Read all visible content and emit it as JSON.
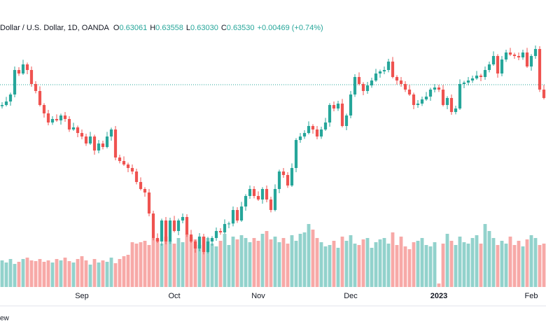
{
  "chart_data": {
    "type": "candlestick",
    "title": "Dollar / U.S. Dollar, 1D, OANDA",
    "legend": [
      {
        "label": "O",
        "value": "0.63061"
      },
      {
        "label": "H",
        "value": "0.63558"
      },
      {
        "label": "L",
        "value": "0.63030"
      },
      {
        "label": "C",
        "value": "0.63530"
      }
    ],
    "change": "+0.00469 (+0.74%)",
    "watermark": "ew",
    "up_color": "#26a69a",
    "down_color": "#ef5350",
    "xlim": [
      -0.5,
      129.5
    ],
    "ylim": [
      0.613,
      0.727
    ],
    "vlim": [
      0,
      100
    ],
    "price_line": 0.6997,
    "xticks": [
      {
        "value": 19,
        "label": "Sep"
      },
      {
        "value": 41,
        "label": "Oct"
      },
      {
        "value": 61,
        "label": "Nov"
      },
      {
        "value": 83,
        "label": "Dec"
      },
      {
        "value": 104,
        "label": "2023",
        "bold": true
      },
      {
        "value": 126,
        "label": "Feb"
      }
    ],
    "open": [
      0.6905,
      0.691,
      0.6925,
      0.6955,
      0.706,
      0.7045,
      0.7084,
      0.706,
      0.7,
      0.697,
      0.691,
      0.6874,
      0.6835,
      0.685,
      0.6844,
      0.6865,
      0.685,
      0.6805,
      0.6814,
      0.679,
      0.6775,
      0.6745,
      0.6775,
      0.6715,
      0.6745,
      0.673,
      0.6775,
      0.6805,
      0.6685,
      0.667,
      0.6655,
      0.664,
      0.6625,
      0.658,
      0.655,
      0.6535,
      0.6445,
      0.634,
      0.6325,
      0.6415,
      0.6325,
      0.6415,
      0.637,
      0.6415,
      0.643,
      0.6355,
      0.6325,
      0.6295,
      0.6346,
      0.628,
      0.6325,
      0.634,
      0.637,
      0.6364,
      0.64,
      0.6402,
      0.646,
      0.6415,
      0.6475,
      0.652,
      0.655,
      0.652,
      0.6505,
      0.655,
      0.6505,
      0.646,
      0.655,
      0.6625,
      0.661,
      0.6565,
      0.664,
      0.676,
      0.6775,
      0.679,
      0.682,
      0.6805,
      0.6775,
      0.6805,
      0.6835,
      0.691,
      0.6895,
      0.6916,
      0.682,
      0.6865,
      0.6955,
      0.703,
      0.7,
      0.697,
      0.6994,
      0.7015,
      0.7045,
      0.7054,
      0.706,
      0.7096,
      0.703,
      0.7015,
      0.7,
      0.6976,
      0.6955,
      0.691,
      0.6916,
      0.6934,
      0.6946,
      0.6976,
      0.6985,
      0.6976,
      0.691,
      0.694,
      0.688,
      0.6895,
      0.7,
      0.7006,
      0.7015,
      0.7024,
      0.7036,
      0.703,
      0.706,
      0.7084,
      0.712,
      0.7045,
      0.7105,
      0.7135,
      0.7126,
      0.712,
      0.7114,
      0.7135,
      0.7075,
      0.712,
      0.715,
      0.6976
    ],
    "high": [
      0.6922,
      0.6945,
      0.6963,
      0.7075,
      0.7072,
      0.7104,
      0.7092,
      0.7075,
      0.7012,
      0.699,
      0.6918,
      0.6889,
      0.6862,
      0.687,
      0.6873,
      0.688,
      0.6862,
      0.6834,
      0.6822,
      0.6805,
      0.6787,
      0.6795,
      0.6783,
      0.676,
      0.6757,
      0.6795,
      0.6813,
      0.682,
      0.6697,
      0.669,
      0.6663,
      0.6655,
      0.6637,
      0.66,
      0.6558,
      0.655,
      0.6457,
      0.636,
      0.6423,
      0.643,
      0.6427,
      0.6435,
      0.6423,
      0.6445,
      0.6442,
      0.6375,
      0.6333,
      0.6361,
      0.6358,
      0.6345,
      0.6348,
      0.6385,
      0.6382,
      0.642,
      0.641,
      0.6475,
      0.6472,
      0.6495,
      0.6528,
      0.6565,
      0.6562,
      0.654,
      0.6558,
      0.6565,
      0.6517,
      0.657,
      0.6633,
      0.664,
      0.6622,
      0.666,
      0.6768,
      0.679,
      0.6802,
      0.684,
      0.6828,
      0.682,
      0.6817,
      0.6855,
      0.6918,
      0.6925,
      0.6928,
      0.6936,
      0.6873,
      0.697,
      0.7042,
      0.705,
      0.7008,
      0.7009,
      0.7027,
      0.7065,
      0.7062,
      0.7075,
      0.7108,
      0.7116,
      0.7038,
      0.703,
      0.7012,
      0.6996,
      0.6963,
      0.6931,
      0.6946,
      0.6966,
      0.6984,
      0.7,
      0.6997,
      0.6996,
      0.6948,
      0.6955,
      0.6907,
      0.702,
      0.7014,
      0.703,
      0.7036,
      0.7056,
      0.7044,
      0.7075,
      0.7096,
      0.714,
      0.7128,
      0.712,
      0.7147,
      0.7155,
      0.7134,
      0.7135,
      0.7147,
      0.7155,
      0.7128,
      0.7165,
      0.7162,
      0.6996
    ],
    "low": [
      0.6895,
      0.6904,
      0.6907,
      0.6943,
      0.7035,
      0.7039,
      0.7042,
      0.6988,
      0.696,
      0.6904,
      0.6856,
      0.6823,
      0.6825,
      0.6838,
      0.6826,
      0.6838,
      0.6795,
      0.6799,
      0.6772,
      0.6763,
      0.6735,
      0.6739,
      0.6697,
      0.6703,
      0.672,
      0.6724,
      0.6757,
      0.6673,
      0.666,
      0.6649,
      0.6622,
      0.6613,
      0.657,
      0.6544,
      0.6517,
      0.6433,
      0.633,
      0.6319,
      0.6307,
      0.6313,
      0.6315,
      0.6364,
      0.6352,
      0.6403,
      0.6345,
      0.6319,
      0.6277,
      0.6283,
      0.627,
      0.6274,
      0.6307,
      0.6328,
      0.6354,
      0.6358,
      0.6382,
      0.639,
      0.6405,
      0.6409,
      0.6457,
      0.6508,
      0.651,
      0.6499,
      0.6487,
      0.6493,
      0.645,
      0.6454,
      0.6532,
      0.6598,
      0.6555,
      0.6559,
      0.6622,
      0.6748,
      0.6765,
      0.6784,
      0.6787,
      0.6763,
      0.6765,
      0.6799,
      0.6817,
      0.6883,
      0.6885,
      0.6814,
      0.6802,
      0.6853,
      0.6945,
      0.6994,
      0.6952,
      0.6958,
      0.6984,
      0.7009,
      0.7027,
      0.7042,
      0.705,
      0.7024,
      0.6997,
      0.6988,
      0.6966,
      0.6949,
      0.6892,
      0.6898,
      0.6906,
      0.6928,
      0.6928,
      0.6964,
      0.6966,
      0.6904,
      0.6892,
      0.6868,
      0.687,
      0.6889,
      0.6982,
      0.6994,
      0.7005,
      0.7018,
      0.7012,
      0.7018,
      0.705,
      0.7078,
      0.7027,
      0.7033,
      0.7095,
      0.712,
      0.7108,
      0.7102,
      0.7104,
      0.7069,
      0.7057,
      0.7108,
      0.6966,
      0.6934
    ],
    "close": [
      0.691,
      0.6925,
      0.6955,
      0.706,
      0.7045,
      0.7084,
      0.706,
      0.7,
      0.697,
      0.691,
      0.6874,
      0.6835,
      0.685,
      0.6844,
      0.6865,
      0.685,
      0.6805,
      0.6814,
      0.679,
      0.6775,
      0.6745,
      0.6775,
      0.6715,
      0.6745,
      0.673,
      0.6775,
      0.6805,
      0.6685,
      0.667,
      0.6655,
      0.664,
      0.6625,
      0.658,
      0.655,
      0.6535,
      0.6445,
      0.634,
      0.6325,
      0.6415,
      0.6325,
      0.6415,
      0.637,
      0.6415,
      0.643,
      0.6355,
      0.6325,
      0.6295,
      0.6346,
      0.628,
      0.6325,
      0.634,
      0.637,
      0.6364,
      0.64,
      0.6402,
      0.646,
      0.6415,
      0.6475,
      0.652,
      0.655,
      0.652,
      0.6505,
      0.655,
      0.6505,
      0.646,
      0.655,
      0.6625,
      0.661,
      0.6565,
      0.664,
      0.676,
      0.6775,
      0.679,
      0.682,
      0.6805,
      0.6775,
      0.6805,
      0.6835,
      0.691,
      0.6895,
      0.6916,
      0.682,
      0.6865,
      0.6955,
      0.703,
      0.7,
      0.697,
      0.6994,
      0.7015,
      0.7045,
      0.7054,
      0.706,
      0.7096,
      0.703,
      0.7015,
      0.7,
      0.6976,
      0.6955,
      0.691,
      0.6916,
      0.6934,
      0.6946,
      0.6976,
      0.6985,
      0.6976,
      0.691,
      0.694,
      0.688,
      0.6895,
      0.7,
      0.7006,
      0.7015,
      0.7024,
      0.7036,
      0.703,
      0.706,
      0.7084,
      0.712,
      0.7045,
      0.7105,
      0.7135,
      0.7126,
      0.712,
      0.7114,
      0.7135,
      0.7075,
      0.712,
      0.715,
      0.6976,
      0.694
    ],
    "volume": [
      38,
      35,
      40,
      33,
      36,
      40,
      42,
      38,
      37,
      40,
      36,
      38,
      35,
      40,
      38,
      42,
      37,
      35,
      40,
      44,
      38,
      32,
      40,
      35,
      38,
      36,
      42,
      34,
      40,
      44,
      46,
      64,
      62,
      64,
      66,
      60,
      70,
      68,
      62,
      72,
      66,
      62,
      70,
      64,
      76,
      72,
      68,
      60,
      72,
      70,
      62,
      58,
      66,
      76,
      60,
      72,
      68,
      74,
      70,
      64,
      70,
      66,
      76,
      80,
      68,
      72,
      64,
      70,
      62,
      74,
      66,
      76,
      78,
      90,
      82,
      70,
      64,
      58,
      60,
      66,
      56,
      72,
      66,
      74,
      62,
      60,
      68,
      70,
      56,
      64,
      68,
      70,
      62,
      78,
      60,
      72,
      58,
      54,
      64,
      66,
      70,
      60,
      58,
      64,
      5,
      62,
      76,
      66,
      60,
      72,
      64,
      62,
      70,
      74,
      62,
      90,
      80,
      70,
      60,
      66,
      62,
      72,
      60,
      66,
      58,
      68,
      74,
      70,
      60,
      62
    ]
  }
}
